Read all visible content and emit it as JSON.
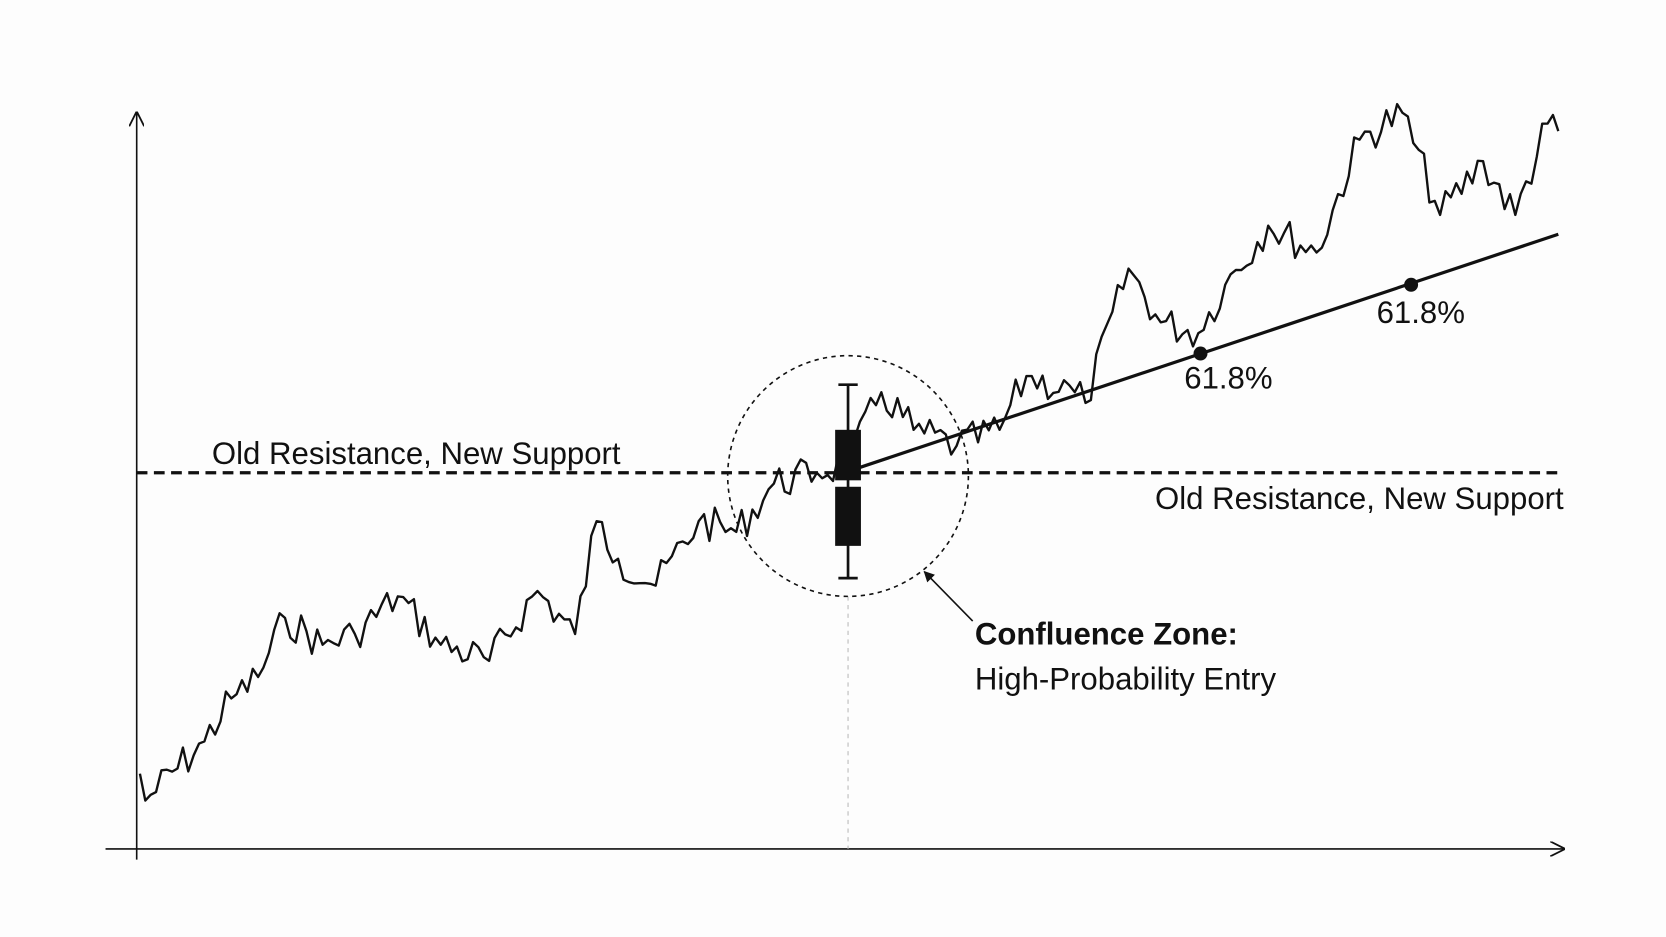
{
  "support_label_left": "Old Resistance, New Support",
  "support_label_right": "Old Resistance, New Support",
  "fib_labels": [
    "61.8%",
    "61.8%"
  ],
  "callout": {
    "title": "Confluence Zone:",
    "subtitle": "High-Probability Entry"
  }
}
